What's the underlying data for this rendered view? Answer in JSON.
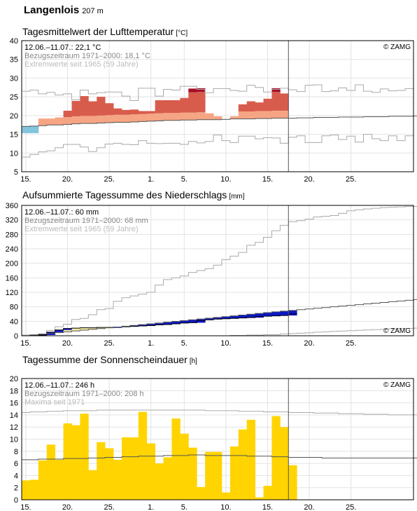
{
  "station": {
    "name": "Langenlois",
    "altitude": "207 m"
  },
  "x_tick_labels": [
    "15.",
    "20.",
    "25.",
    "1.",
    "5.",
    "10.",
    "15.",
    "20.",
    "25."
  ],
  "copyright": "© ZAMG",
  "chart_data": [
    {
      "type": "bar",
      "title": "Tagesmittelwert der Lufttemperatur",
      "unit": "[°C]",
      "info": [
        "12.06.–11.07.: 22,1 °C",
        "Bezugszeitraum 1971–2000: 18,1 °C",
        "Extremwerte seit 1965 (59 Jahre)"
      ],
      "ylim": [
        5,
        40
      ],
      "yticks": [
        5,
        10,
        15,
        20,
        25,
        30,
        35,
        40
      ],
      "days": 47,
      "days_observed": 30,
      "colors": {
        "cold": "#82c5dd",
        "cold_edge": "#4f9fc0",
        "warm": "#f6a584",
        "hot": "#d85c4c",
        "record": "#a70d26",
        "normal": "#555555",
        "extreme": "#aaaaaa"
      },
      "series": [
        {
          "name": "daily_mean",
          "values": [
            15.3,
            15.3,
            19.2,
            19.2,
            19.5,
            21.3,
            23.9,
            25.2,
            23.8,
            25.0,
            23.3,
            21.9,
            21.5,
            21.6,
            21.2,
            21.2,
            24.1,
            24.1,
            24.1,
            24.7,
            27.2,
            27.3,
            20.6,
            19.8,
            18.9,
            19.8,
            23.0,
            23.8,
            23.5,
            24.5,
            27.3,
            25.9
          ]
        },
        {
          "name": "normal",
          "values": [
            17.1,
            17.2,
            17.3,
            17.5,
            17.5,
            17.6,
            17.8,
            17.9,
            17.9,
            18.0,
            18.1,
            18.2,
            18.2,
            18.3,
            18.4,
            18.5,
            18.6,
            18.7,
            18.7,
            18.8,
            18.8,
            18.9,
            18.9,
            18.9,
            19.0,
            19.1,
            19.1,
            19.1,
            19.2,
            19.2,
            19.3,
            19.3,
            19.3,
            19.4,
            19.4,
            19.5,
            19.5,
            19.5,
            19.6,
            19.6,
            19.6,
            19.7,
            19.7,
            19.7,
            19.8,
            19.8,
            19.8,
            19.9
          ]
        },
        {
          "name": "max_extreme",
          "values": [
            26.5,
            26.8,
            25.8,
            26.2,
            25.5,
            25.8,
            24.2,
            26.8,
            25.8,
            26.1,
            26.3,
            26.3,
            25.2,
            24.0,
            27.3,
            27.3,
            25.2,
            27.0,
            26.8,
            27.8,
            27.8,
            27.0,
            26.1,
            27.2,
            27.2,
            26.7,
            26.5,
            28.1,
            27.5,
            26.3,
            27.0,
            27.3,
            26.9,
            26.4,
            28.1,
            28.2,
            26.4,
            26.6,
            27.4,
            26.7,
            28.2,
            26.5,
            26.2,
            27.1,
            26.6,
            26.7,
            27.2
          ]
        },
        {
          "name": "min_extreme",
          "values": [
            8.9,
            9.6,
            10.3,
            10.6,
            11.4,
            12.3,
            12.3,
            11.6,
            10.4,
            11.4,
            12.4,
            12.6,
            12.3,
            12.2,
            13.3,
            12.6,
            12.5,
            12.6,
            12.6,
            12.3,
            13.1,
            12.7,
            13.1,
            14.8,
            13.3,
            12.8,
            14.5,
            14.5,
            13.8,
            14.1,
            14.0,
            12.6,
            14.2,
            14.6,
            12.8,
            12.8,
            14.6,
            14.8,
            13.6,
            14.5,
            12.9,
            15.0,
            13.8,
            13.3,
            14.6,
            13.3,
            14.6
          ]
        }
      ]
    },
    {
      "type": "line",
      "title": "Aufsummierte Tagessumme des Niederschlags",
      "unit": "[mm]",
      "info": [
        "12.06.–11.07.: 60 mm",
        "Bezugszeitraum 1971–2000: 68 mm",
        "Extremwerte seit 1965 (59 Jahre)"
      ],
      "ylim": [
        0,
        360
      ],
      "yticks": [
        0,
        40,
        80,
        120,
        160,
        200,
        240,
        280,
        320,
        360
      ],
      "days": 47,
      "days_observed": 30,
      "colors": {
        "deficit": "#0b18c6",
        "surplus": "#f5e9a6",
        "normal": "#555555",
        "extreme": "#aaaaaa"
      },
      "series": [
        {
          "name": "accumulated",
          "values": [
            0,
            1,
            2,
            10,
            16,
            20,
            21,
            22,
            22,
            23,
            23,
            24,
            25,
            26,
            27,
            28,
            30,
            31,
            33,
            35,
            36,
            42,
            44,
            46,
            47,
            48,
            49,
            50,
            53,
            54,
            55,
            56,
            60
          ]
        },
        {
          "name": "normal",
          "values": [
            0,
            2.2,
            4.4,
            6.6,
            8.8,
            11.0,
            13.2,
            15.4,
            17.6,
            19.8,
            22.0,
            24.2,
            26.4,
            28.6,
            30.8,
            33.0,
            35.2,
            37.4,
            39.6,
            41.8,
            44.0,
            46.2,
            48.4,
            50.6,
            52.8,
            55.0,
            57.2,
            59.4,
            61.6,
            63.8,
            66.0,
            68.0,
            70.0,
            72.0,
            74.0,
            76.0,
            78.0,
            80.0,
            82.0,
            84.0,
            86.0,
            88.0,
            90.0,
            92.0,
            94.0,
            96.0,
            98.0,
            100.0
          ]
        },
        {
          "name": "max_extreme",
          "values": [
            2,
            3,
            5,
            15,
            25,
            32,
            45,
            48,
            58,
            72,
            75,
            95,
            105,
            110,
            115,
            120,
            140,
            155,
            160,
            165,
            175,
            180,
            185,
            195,
            210,
            220,
            230,
            250,
            258,
            272,
            290,
            305,
            315,
            318,
            322,
            328,
            330,
            332,
            338,
            345,
            348,
            350,
            352,
            354,
            355,
            356,
            357,
            357
          ]
        },
        {
          "name": "min_extreme",
          "values": [
            0,
            0,
            0,
            0,
            0,
            0,
            0,
            0,
            0,
            0,
            0,
            0,
            0,
            0,
            0,
            0,
            0,
            0,
            0,
            0,
            0,
            0,
            0,
            0,
            0,
            1,
            1,
            2,
            2,
            3,
            3,
            5,
            6,
            7,
            8,
            10,
            11,
            12,
            13,
            14,
            15,
            16,
            17,
            18,
            19,
            20,
            20,
            21
          ]
        }
      ]
    },
    {
      "type": "bar",
      "title": "Tagessumme der Sonnenscheindauer",
      "unit": "[h]",
      "info": [
        "12.06.–11.07.: 246 h",
        "Bezugszeitraum 1971–2000: 208 h",
        "Maxima seit 1971"
      ],
      "ylim": [
        0,
        20
      ],
      "yticks": [
        0,
        2,
        4,
        6,
        8,
        10,
        12,
        14,
        16,
        18,
        20
      ],
      "days": 47,
      "days_observed": 30,
      "colors": {
        "bar": "#ffd400",
        "normal": "#555555",
        "extreme": "#aaaaaa"
      },
      "series": [
        {
          "name": "sunshine",
          "values": [
            3.2,
            3.3,
            6.5,
            9.1,
            6.6,
            12.6,
            12.3,
            14.2,
            4.9,
            9.5,
            8.5,
            6.6,
            10.3,
            10.3,
            14.5,
            9.3,
            6.0,
            7.0,
            13.4,
            10.9,
            8.6,
            2.1,
            7.9,
            7.9,
            1.2,
            8.8,
            11.6,
            13.2,
            0.4,
            2.3,
            13.8,
            12.0,
            5.7
          ]
        },
        {
          "name": "normal",
          "values": [
            6.6,
            6.6,
            6.7,
            6.7,
            6.7,
            6.8,
            6.8,
            6.8,
            6.9,
            6.9,
            7.0,
            7.0,
            7.1,
            7.1,
            7.2,
            7.2,
            7.2,
            7.3,
            7.3,
            7.3,
            7.4,
            7.4,
            7.3,
            7.3,
            7.3,
            7.3,
            7.3,
            7.2,
            7.2,
            7.2,
            7.1,
            7.1,
            7.0,
            7.0,
            7.0,
            7.0,
            6.9,
            6.9,
            6.9,
            6.9,
            6.9,
            6.9,
            6.9,
            6.9,
            6.9,
            6.9,
            6.9,
            6.9
          ]
        },
        {
          "name": "maxima",
          "values": [
            14.4,
            14.5,
            14.5,
            14.6,
            14.6,
            14.7,
            14.7,
            14.7,
            14.7,
            14.8,
            14.8,
            14.8,
            14.8,
            14.8,
            14.8,
            14.8,
            14.8,
            14.8,
            14.8,
            14.8,
            14.8,
            14.8,
            14.7,
            14.7,
            14.7,
            14.7,
            14.6,
            14.6,
            14.6,
            14.5,
            14.5,
            14.5,
            14.4,
            14.4,
            14.4,
            14.3,
            14.3,
            14.3,
            14.2,
            14.2,
            14.2,
            14.1,
            14.1,
            14.1,
            14.0,
            14.0,
            14.0,
            14.0
          ]
        }
      ]
    }
  ]
}
